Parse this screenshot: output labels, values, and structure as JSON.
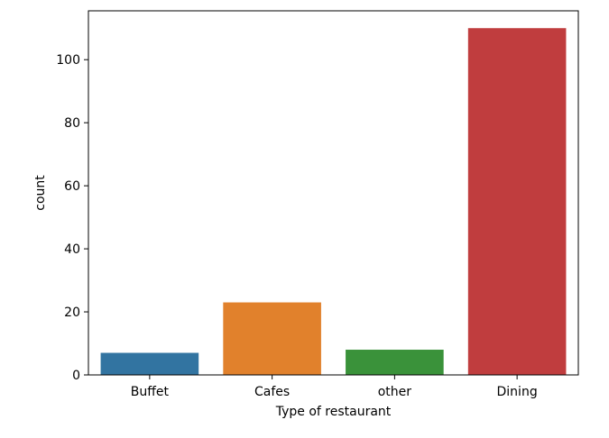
{
  "chart_data": {
    "type": "bar",
    "categories": [
      "Buffet",
      "Cafes",
      "other",
      "Dining"
    ],
    "values": [
      7,
      23,
      8,
      110
    ],
    "colors": [
      "#3274a1",
      "#e1812c",
      "#3a923a",
      "#c03d3e"
    ],
    "xlabel": "Type of restaurant",
    "ylabel": "count",
    "ylim": [
      0,
      115.5
    ],
    "yticks": [
      0,
      20,
      40,
      60,
      80,
      100
    ],
    "grid": false
  }
}
